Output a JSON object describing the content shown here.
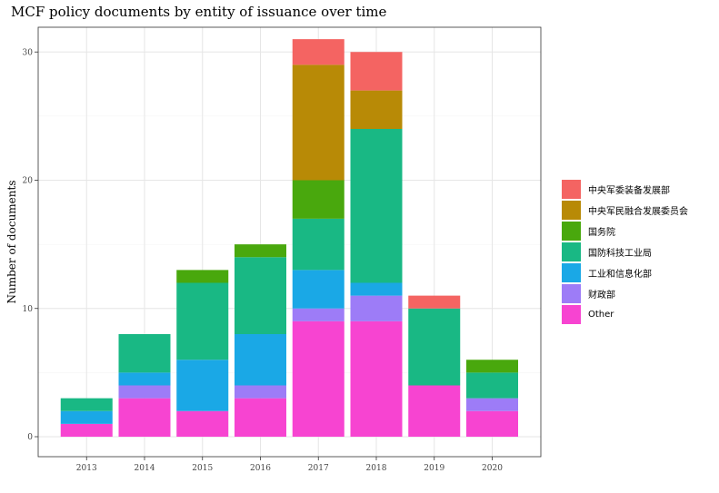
{
  "chart_data": {
    "type": "bar",
    "stacked": true,
    "title": "MCF policy documents by entity of issuance over time",
    "xlabel": "",
    "ylabel": "Number of documents",
    "categories": [
      "2013",
      "2014",
      "2015",
      "2016",
      "2017",
      "2018",
      "2019",
      "2020"
    ],
    "ylim": [
      0,
      32
    ],
    "yticks": [
      0,
      10,
      20,
      30
    ],
    "grid": true,
    "legend_position": "right",
    "series": [
      {
        "name": "Other",
        "color": "#F744D1",
        "values": [
          1,
          3,
          2,
          3,
          9,
          9,
          4,
          2
        ]
      },
      {
        "name": "财政部",
        "color": "#9D7CF7",
        "values": [
          0,
          1,
          0,
          1,
          1,
          2,
          0,
          1
        ]
      },
      {
        "name": "工业和信息化部",
        "color": "#1AA8E6",
        "values": [
          1,
          1,
          4,
          4,
          3,
          1,
          0,
          0
        ]
      },
      {
        "name": "国防科技工业局",
        "color": "#19B884",
        "values": [
          1,
          3,
          6,
          6,
          4,
          12,
          6,
          2
        ]
      },
      {
        "name": "国务院",
        "color": "#49A80D",
        "values": [
          0,
          0,
          1,
          1,
          3,
          0,
          0,
          1
        ]
      },
      {
        "name": "中央军民融合发展委员会",
        "color": "#B88A06",
        "values": [
          0,
          0,
          0,
          0,
          9,
          3,
          0,
          0
        ]
      },
      {
        "name": "中央军委装备发展部",
        "color": "#F46462",
        "values": [
          0,
          0,
          0,
          0,
          2,
          3,
          1,
          0
        ]
      }
    ],
    "legend_order": [
      "中央军委装备发展部",
      "中央军民融合发展委员会",
      "国务院",
      "国防科技工业局",
      "工业和信息化部",
      "财政部",
      "Other"
    ]
  }
}
